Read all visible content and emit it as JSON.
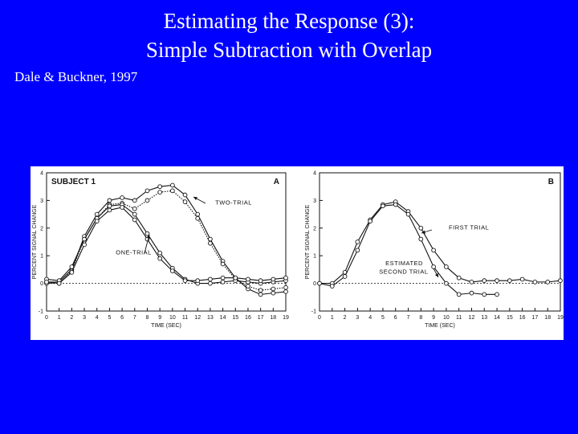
{
  "slide": {
    "title_line1": "Estimating the Response (3):",
    "title_line2": "Simple Subtraction with Overlap",
    "citation": "Dale & Buckner, 1997"
  },
  "colors": {
    "background": "#0000ff",
    "text": "#ffffff",
    "figure_bg": "#ffffff",
    "ink": "#111111"
  },
  "chart_data": [
    {
      "type": "line",
      "panel_label": "A",
      "subject_label": "SUBJECT 1",
      "xlabel": "TIME (SEC)",
      "ylabel": "PERCENT SIGNAL CHANGE",
      "xlim": [
        0,
        19
      ],
      "ylim": [
        -1,
        4
      ],
      "x_ticks": [
        0,
        1,
        2,
        3,
        4,
        5,
        6,
        7,
        8,
        9,
        10,
        11,
        12,
        13,
        14,
        15,
        16,
        17,
        18,
        19
      ],
      "y_ticks": [
        -1,
        0,
        1,
        2,
        3,
        4
      ],
      "x": [
        0,
        1,
        2,
        3,
        4,
        5,
        6,
        7,
        8,
        9,
        10,
        11,
        12,
        13,
        14,
        15,
        16,
        17,
        18,
        19
      ],
      "series": [
        {
          "name": "TWO-TRIAL",
          "style": "solid",
          "values": [
            0.05,
            0.05,
            0.5,
            1.7,
            2.5,
            3.0,
            3.1,
            3.0,
            3.35,
            3.5,
            3.55,
            3.2,
            2.5,
            1.6,
            0.8,
            0.2,
            -0.2,
            -0.4,
            -0.35,
            -0.3
          ]
        },
        {
          "name": "",
          "style": "dotted",
          "values": [
            0.0,
            0.0,
            0.45,
            1.6,
            2.35,
            2.85,
            2.9,
            2.7,
            3.0,
            3.3,
            3.35,
            2.95,
            2.35,
            1.45,
            0.7,
            0.15,
            -0.1,
            -0.25,
            -0.2,
            -0.15
          ]
        },
        {
          "name": "ONE-TRIAL",
          "style": "solid",
          "values": [
            0.15,
            0.1,
            0.6,
            1.6,
            2.35,
            2.8,
            2.85,
            2.5,
            1.8,
            1.1,
            0.55,
            0.15,
            0.0,
            0.0,
            0.05,
            0.1,
            0.05,
            0.0,
            0.05,
            0.1
          ]
        },
        {
          "name": "",
          "style": "solid",
          "values": [
            0.05,
            0.0,
            0.4,
            1.4,
            2.25,
            2.65,
            2.75,
            2.3,
            1.6,
            0.9,
            0.45,
            0.1,
            0.1,
            0.15,
            0.2,
            0.2,
            0.15,
            0.1,
            0.15,
            0.2
          ]
        }
      ],
      "annotations": [
        {
          "text": "TWO-TRIAL",
          "x": 13.4,
          "y": 2.85
        },
        {
          "text": "ONE-TRIAL",
          "x": 5.5,
          "y": 1.05
        }
      ]
    },
    {
      "type": "line",
      "panel_label": "B",
      "xlabel": "TIME (SEC)",
      "ylabel": "PERCENT SIGNAL CHANGE",
      "xlim": [
        0,
        19
      ],
      "ylim": [
        -1,
        4
      ],
      "x_ticks": [
        0,
        1,
        2,
        3,
        4,
        5,
        6,
        7,
        8,
        9,
        10,
        11,
        12,
        13,
        14,
        15,
        16,
        17,
        18,
        19
      ],
      "y_ticks": [
        -1,
        0,
        1,
        2,
        3,
        4
      ],
      "series": [
        {
          "name": "FIRST TRIAL",
          "style": "solid",
          "x": [
            0,
            1,
            2,
            3,
            4,
            5,
            6,
            7,
            8,
            9,
            10,
            11,
            12,
            13,
            14,
            15,
            16,
            17,
            18,
            19
          ],
          "values": [
            0.0,
            0.0,
            0.4,
            1.5,
            2.3,
            2.85,
            2.95,
            2.6,
            2.0,
            1.2,
            0.6,
            0.2,
            0.05,
            0.1,
            0.1,
            0.1,
            0.15,
            0.05,
            0.05,
            0.1
          ]
        },
        {
          "name": "ESTIMATED SECOND TRIAL",
          "style": "solid",
          "x": [
            0,
            1,
            2,
            3,
            4,
            5,
            6,
            7,
            8,
            9,
            10,
            11,
            12,
            13,
            14
          ],
          "values": [
            0.0,
            -0.1,
            0.25,
            1.2,
            2.25,
            2.8,
            2.85,
            2.5,
            1.6,
            0.6,
            0.0,
            -0.4,
            -0.35,
            -0.4,
            -0.4
          ]
        }
      ],
      "annotations": [
        {
          "text": "FIRST TRIAL",
          "x": 10.2,
          "y": 1.95
        },
        {
          "text": "ESTIMATED",
          "x": 5.2,
          "y": 0.65
        },
        {
          "text": "SECOND TRIAL",
          "x": 4.7,
          "y": 0.35
        }
      ]
    }
  ]
}
